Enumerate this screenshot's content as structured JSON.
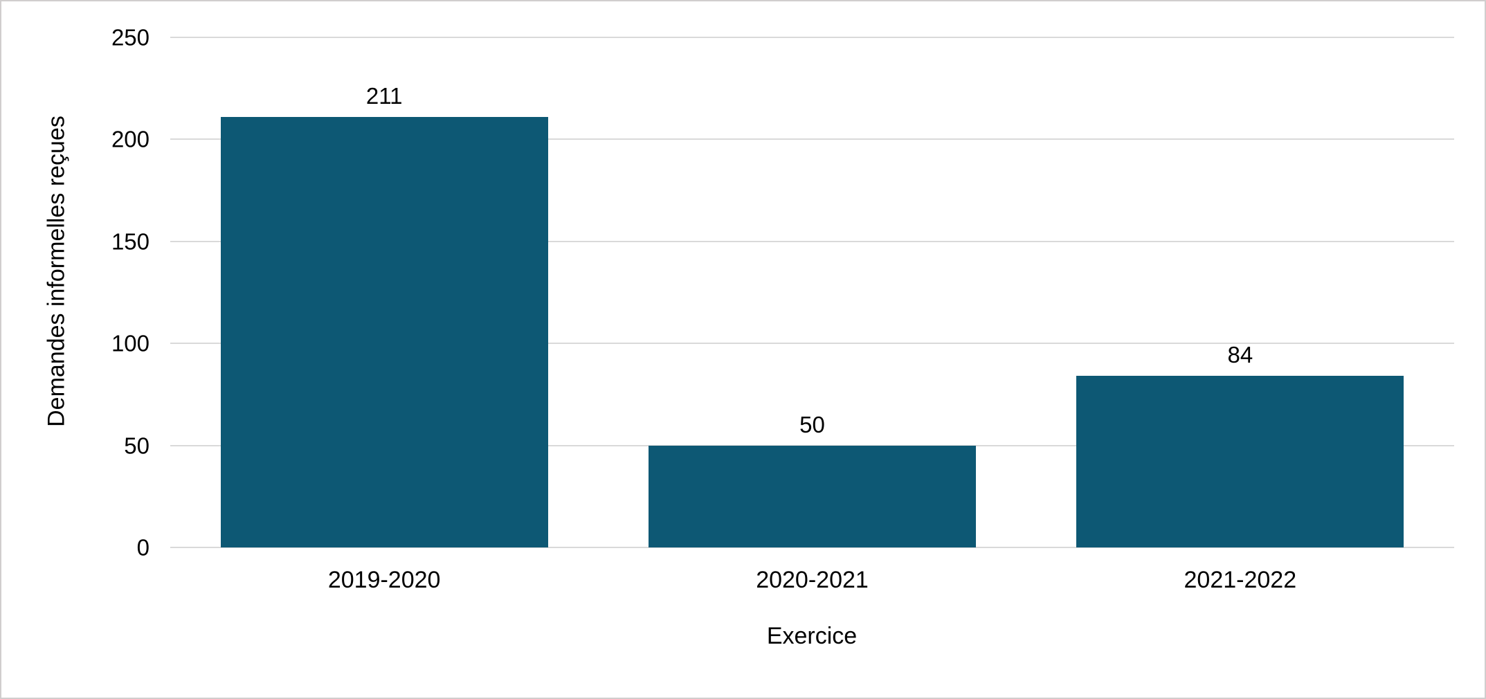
{
  "chart_data": {
    "type": "bar",
    "title": "",
    "categories": [
      "2019-2020",
      "2020-2021",
      "2021-2022"
    ],
    "values": [
      211,
      50,
      84
    ],
    "xlabel": "Exercice",
    "ylabel": "Demandes informelles reçues",
    "ylim": [
      0,
      250
    ],
    "yticks": [
      0,
      50,
      100,
      150,
      200,
      250
    ],
    "grid": true,
    "legend_position": "none",
    "bar_color": "#0d5874",
    "gridline_color": "#d9d9d9",
    "text_color": "#000000",
    "background_color": "#ffffff",
    "border_color": "#d0cece"
  }
}
